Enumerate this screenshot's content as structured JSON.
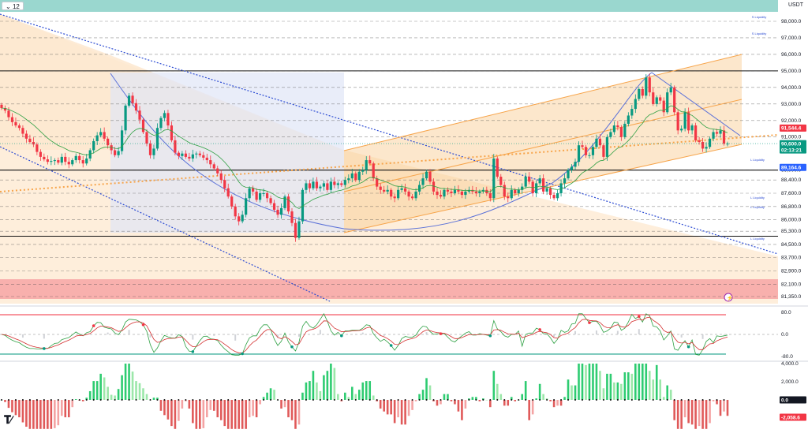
{
  "header": {
    "interval_button": "12",
    "currency": "USDT"
  },
  "colors": {
    "top_bar": "#9ad7cf",
    "bull": "#089981",
    "bear": "#f23645",
    "zone_orange": "#fde8cf",
    "zone_red": "#f7a5a5",
    "channel": "#f7a44a",
    "trend_blue": "#2b4bd3",
    "curve_blue": "#5b71d8"
  },
  "price_axis": {
    "ticks": [
      "98,000.0",
      "97,000.0",
      "96,000.0",
      "95,000.0",
      "94,000.0",
      "93,000.0",
      "92,000.0",
      "91,000.0",
      "89,000.0",
      "88,400.0",
      "87,600.0",
      "86,800.0",
      "86,000.0",
      "85,300.0",
      "84,500.0",
      "83,700.0",
      "82,900.0",
      "82,100.0",
      "81,350.0"
    ],
    "badges": [
      {
        "label": "91,544.4",
        "kind": "bear"
      },
      {
        "label": "90,600.0",
        "kind": "bull"
      },
      {
        "label": "02:13:21",
        "kind": "bull"
      },
      {
        "label": "89,164.6",
        "kind": "blue"
      }
    ]
  },
  "liquidity_labels": [
    {
      "text": "S Liquidity"
    },
    {
      "text": "S Liquidity"
    },
    {
      "text": "L Liquidity"
    },
    {
      "text": "L Liquidity"
    },
    {
      "text": "L Liquidity"
    },
    {
      "text": "L Liquidity"
    }
  ],
  "oscillator": {
    "ticks": [
      "80.0",
      "0.0",
      "-80.0"
    ]
  },
  "macd": {
    "ticks": [
      "4,000.0",
      "2,000.0"
    ],
    "badges": [
      {
        "label": "0.0",
        "kind": "dark"
      },
      {
        "label": "-2,058.6",
        "kind": "bear"
      }
    ]
  },
  "chart_data": {
    "type": "candlestick",
    "symbol_currency": "USDT",
    "price_range": [
      80900,
      98800
    ],
    "last_price": 90600.0,
    "countdown": "02:13:21",
    "marked_prices": [
      91544.4,
      89164.6
    ],
    "horizontal_levels": [
      95000,
      89000,
      85000
    ],
    "closes": [
      92750,
      92600,
      92200,
      91900,
      91700,
      91550,
      91200,
      90900,
      90700,
      90550,
      90100,
      89800,
      89650,
      89500,
      89550,
      89600,
      89450,
      89800,
      89500,
      89350,
      89600,
      89850,
      89600,
      89400,
      89700,
      90200,
      90750,
      91100,
      91300,
      90900,
      90500,
      90200,
      89900,
      90150,
      91400,
      92900,
      93500,
      93050,
      92600,
      92050,
      91300,
      90600,
      89900,
      90300,
      91550,
      92150,
      92450,
      91700,
      90800,
      90050,
      89850,
      90000,
      89800,
      89700,
      89950,
      90000,
      89900,
      89750,
      89600,
      89350,
      89100,
      88800,
      88400,
      87900,
      87400,
      86800,
      86200,
      85900,
      86300,
      87300,
      87900,
      87700,
      87200,
      87600,
      87600,
      87300,
      87000,
      86600,
      86300,
      86700,
      87400,
      86500,
      85800,
      84900,
      85900,
      87800,
      88200,
      87900,
      88300,
      87900,
      88000,
      88200,
      87800,
      88300,
      88100,
      88200,
      88100,
      88400,
      88500,
      88800,
      88400,
      88900,
      89000,
      89600,
      89400,
      88500,
      88000,
      87800,
      87700,
      87800,
      87400,
      87300,
      87800,
      87900,
      87700,
      87400,
      87300,
      87700,
      88100,
      88500,
      88900,
      88300,
      87700,
      87500,
      87400,
      87800,
      87700,
      87600,
      87800,
      87700,
      87500,
      87700,
      87800,
      87700,
      87600,
      87700,
      87800,
      87600,
      87300,
      89700,
      88600,
      88100,
      87400,
      87300,
      87800,
      87600,
      87800,
      88000,
      88600,
      88300,
      87600,
      88200,
      88500,
      87700,
      87900,
      87500,
      87300,
      87600,
      88200,
      88500,
      89000,
      89200,
      89500,
      90500,
      90400,
      89900,
      89900,
      90400,
      90900,
      90500,
      89800,
      91000,
      91300,
      91700,
      91600,
      91000,
      91800,
      92300,
      92700,
      93300,
      93900,
      93500,
      94600,
      93700,
      93000,
      93400,
      93200,
      92500,
      93700,
      94000,
      92500,
      91400,
      91500,
      92500,
      91400,
      91700,
      90800,
      90700,
      90300,
      90400,
      90900,
      91300,
      91200,
      91400,
      90600,
      90600
    ],
    "oscillator_range": [
      -80,
      80
    ],
    "macd_range": [
      -4000,
      4000
    ],
    "macd_last": -2058.6
  }
}
